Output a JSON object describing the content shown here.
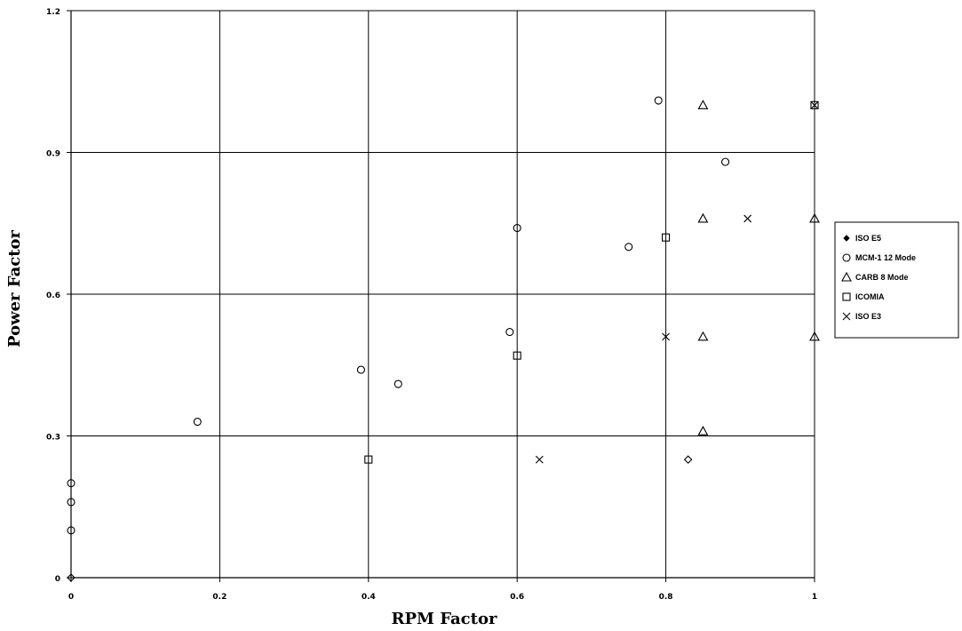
{
  "chart_data": {
    "type": "scatter",
    "xlabel": "RPM Factor",
    "ylabel": "Power Factor",
    "xlim": [
      0,
      1
    ],
    "ylim": [
      0,
      1.2
    ],
    "x_ticks": [
      "0",
      "0.2",
      "0.4",
      "0.6",
      "0.8",
      "1"
    ],
    "y_ticks": [
      "0",
      "0.3",
      "0.6",
      "0.9",
      "1.2"
    ],
    "grid": true,
    "legend_position": "right",
    "series": [
      {
        "name": "ISO E5",
        "marker": "diamond",
        "points": [
          [
            0.83,
            0.25
          ],
          [
            0.0,
            0.0
          ]
        ]
      },
      {
        "name": "MCM-1 12 Mode",
        "marker": "circle",
        "points": [
          [
            0.0,
            0.2
          ],
          [
            0.0,
            0.16
          ],
          [
            0.0,
            0.1
          ],
          [
            0.17,
            0.33
          ],
          [
            0.39,
            0.44
          ],
          [
            0.44,
            0.41
          ],
          [
            0.59,
            0.52
          ],
          [
            0.6,
            0.74
          ],
          [
            0.75,
            0.7
          ],
          [
            0.79,
            1.01
          ],
          [
            0.88,
            0.88
          ]
        ]
      },
      {
        "name": "CARB 8 Mode",
        "marker": "triangle",
        "points": [
          [
            0.85,
            1.0
          ],
          [
            0.85,
            0.76
          ],
          [
            1.0,
            0.76
          ],
          [
            0.85,
            0.51
          ],
          [
            1.0,
            0.51
          ],
          [
            0.85,
            0.31
          ]
        ]
      },
      {
        "name": "ICOMIA",
        "marker": "square",
        "points": [
          [
            0.4,
            0.25
          ],
          [
            0.6,
            0.47
          ],
          [
            0.8,
            0.72
          ],
          [
            1.0,
            1.0
          ]
        ]
      },
      {
        "name": "ISO E3",
        "marker": "x",
        "points": [
          [
            0.63,
            0.25
          ],
          [
            0.8,
            0.51
          ],
          [
            0.91,
            0.76
          ],
          [
            1.0,
            1.0
          ]
        ]
      }
    ]
  }
}
